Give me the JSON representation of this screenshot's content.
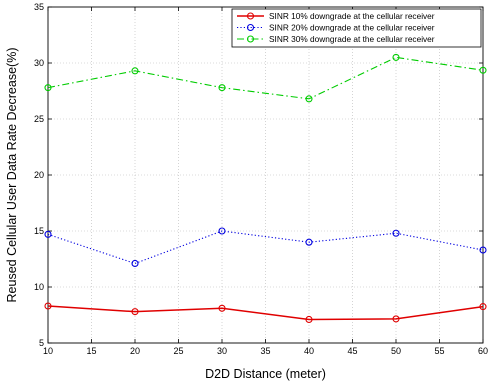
{
  "chart_data": {
    "type": "line",
    "xlabel": "D2D Distance (meter)",
    "ylabel": "Reused Cellular User Data Rate Decrease(%)",
    "xlim": [
      10,
      60
    ],
    "ylim": [
      5,
      35
    ],
    "x_ticks": [
      10,
      15,
      20,
      25,
      30,
      35,
      40,
      45,
      50,
      55,
      60
    ],
    "y_ticks": [
      5,
      10,
      15,
      20,
      25,
      30,
      35
    ],
    "grid": true,
    "legend_position": "top-right",
    "x": [
      10,
      20,
      30,
      40,
      50,
      60
    ],
    "series": [
      {
        "name": "SINR 10% downgrade at the cellular receiver",
        "values": [
          8.3,
          7.8,
          8.1,
          7.1,
          7.15,
          8.25
        ],
        "color": "#e00000",
        "line_style": "solid",
        "marker": "circle"
      },
      {
        "name": "SINR 20% downgrade at the cellular receiver",
        "values": [
          14.7,
          12.1,
          15.0,
          14.0,
          14.8,
          13.3
        ],
        "color": "#0000e0",
        "line_style": "dotted",
        "marker": "circle"
      },
      {
        "name": "SINR 30% downgrade at the cellular receiver",
        "values": [
          27.8,
          29.3,
          27.8,
          26.8,
          30.5,
          29.35
        ],
        "color": "#00cc00",
        "line_style": "dashdot",
        "marker": "circle"
      }
    ]
  }
}
